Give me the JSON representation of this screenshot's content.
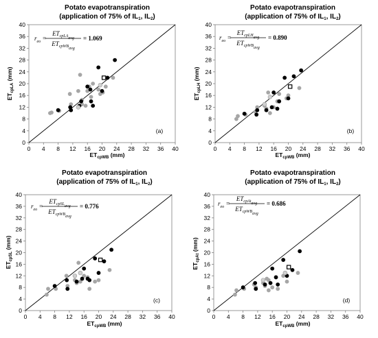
{
  "chart_data": [
    {
      "type": "scatter",
      "panel_label": "(a)",
      "title_line1": "Potato evapotranspiration",
      "title_line2": "(application of 75% of IL",
      "title_sub1": "1",
      "title_mid": ", IL",
      "title_sub2": "2",
      "title_end": ")",
      "xlabel_main": "ET",
      "xlabel_sub": "cpWB",
      "xlabel_unit": " (mm)",
      "ylabel_main": "ET",
      "ylabel_sub": "cpLA",
      "ylabel_unit": " (mm)",
      "xlim": [
        0,
        40
      ],
      "ylim": [
        0,
        40
      ],
      "ticks": [
        "0",
        "4",
        "8",
        "12",
        "16",
        "20",
        "24",
        "28",
        "32",
        "36",
        "40"
      ],
      "equation": {
        "lhs": "r",
        "lhs_sub": "eo",
        "num": "ET",
        "num_sub": "cpLA",
        "num_sub2": "avg",
        "den": "ET",
        "den_sub": "cpWB",
        "den_sub2": "avg",
        "value": "1.069"
      },
      "series": [
        {
          "style": "gray",
          "points": [
            [
              5.8,
              10.0
            ],
            [
              6.2,
              10.2
            ],
            [
              8.3,
              10.8
            ],
            [
              11.2,
              16.5
            ],
            [
              11.5,
              13.0
            ],
            [
              13.5,
              17.5
            ],
            [
              14.0,
              23.0
            ],
            [
              14.5,
              14.5
            ],
            [
              15.5,
              12.5
            ],
            [
              16.5,
              19.0
            ],
            [
              17.0,
              15.5
            ],
            [
              17.5,
              20.0
            ],
            [
              19.0,
              18.0
            ],
            [
              19.5,
              16.5
            ],
            [
              20.2,
              17.0
            ],
            [
              21.0,
              19.0
            ],
            [
              23.0,
              22.0
            ],
            [
              14.5,
              13.0
            ],
            [
              16.0,
              17.5
            ]
          ]
        },
        {
          "style": "black",
          "points": [
            [
              8.0,
              11.0
            ],
            [
              11.3,
              12.0
            ],
            [
              11.5,
              11.0
            ],
            [
              13.8,
              12.5
            ],
            [
              14.3,
              14.0
            ],
            [
              16.0,
              19.0
            ],
            [
              16.8,
              18.0
            ],
            [
              17.0,
              14.0
            ],
            [
              17.5,
              12.5
            ],
            [
              19.0,
              25.5
            ],
            [
              20.0,
              17.5
            ],
            [
              21.5,
              22.0
            ],
            [
              23.5,
              28.0
            ]
          ]
        },
        {
          "style": "lightgray",
          "points": [
            [
              13.5,
              12.0
            ],
            [
              19.5,
              19.5
            ]
          ]
        },
        {
          "style": "open-square",
          "points": [
            [
              20.5,
              22.0
            ]
          ]
        }
      ]
    },
    {
      "type": "scatter",
      "panel_label": "(b)",
      "title_line1": "Potato evapotranspiration",
      "title_line2": "(application of 75% of IL",
      "title_sub1": "1",
      "title_mid": ", IL",
      "title_sub2": "2",
      "title_end": ")",
      "xlabel_main": "ET",
      "xlabel_sub": "cpWB",
      "xlabel_unit": " (mm)",
      "ylabel_main": "ET",
      "ylabel_sub": "cpLH",
      "ylabel_unit": " (mm)",
      "xlim": [
        0,
        40
      ],
      "ylim": [
        0,
        40
      ],
      "ticks": [
        "0",
        "4",
        "8",
        "12",
        "16",
        "20",
        "24",
        "28",
        "32",
        "36",
        "40"
      ],
      "equation": {
        "lhs": "r",
        "lhs_sub": "eo",
        "num": "ET",
        "num_sub": "cpLH",
        "num_sub2": "avg",
        "den": "ET",
        "den_sub": "cpWB",
        "den_sub2": "avg",
        "value": "0.890"
      },
      "series": [
        {
          "style": "gray",
          "points": [
            [
              5.8,
              8.0
            ],
            [
              6.2,
              9.0
            ],
            [
              8.3,
              9.5
            ],
            [
              11.0,
              10.5
            ],
            [
              11.5,
              12.0
            ],
            [
              13.5,
              12.5
            ],
            [
              14.0,
              11.5
            ],
            [
              14.5,
              17.0
            ],
            [
              15.0,
              10.0
            ],
            [
              16.0,
              12.0
            ],
            [
              17.0,
              14.0
            ],
            [
              17.5,
              16.5
            ],
            [
              19.5,
              15.0
            ],
            [
              20.0,
              16.0
            ],
            [
              23.0,
              18.5
            ]
          ]
        },
        {
          "style": "black",
          "points": [
            [
              8.0,
              9.8
            ],
            [
              11.3,
              9.5
            ],
            [
              11.5,
              11.0
            ],
            [
              14.0,
              11.0
            ],
            [
              15.5,
              12.0
            ],
            [
              16.0,
              17.0
            ],
            [
              17.0,
              11.5
            ],
            [
              17.5,
              14.0
            ],
            [
              19.0,
              22.0
            ],
            [
              20.0,
              15.0
            ],
            [
              21.5,
              22.5
            ],
            [
              23.5,
              24.5
            ]
          ]
        },
        {
          "style": "lightgray",
          "points": [
            [
              13.5,
              13.0
            ],
            [
              15.0,
              15.5
            ]
          ]
        },
        {
          "style": "open-square",
          "points": [
            [
              20.5,
              19.0
            ]
          ]
        }
      ]
    },
    {
      "type": "scatter",
      "panel_label": "(c)",
      "title_line1": "Potato evapotranspiration",
      "title_line2": "(application of 75% of IL",
      "title_sub1": "1",
      "title_mid": ", IL",
      "title_sub2": "2",
      "title_end": ")",
      "xlabel_main": "ET",
      "xlabel_sub": "cpWB",
      "xlabel_unit": " (mm)",
      "ylabel_main": "ET",
      "ylabel_sub": "cpSL",
      "ylabel_unit": " (mm)",
      "xlim": [
        0,
        40
      ],
      "ylim": [
        0,
        40
      ],
      "ticks": [
        "0",
        "4",
        "8",
        "12",
        "16",
        "20",
        "24",
        "28",
        "32",
        "36",
        "40"
      ],
      "equation": {
        "lhs": "r",
        "lhs_sub": "eo",
        "num": "ET",
        "num_sub": "cpSL",
        "num_sub2": "avg",
        "den": "ET",
        "den_sub": "cpWB",
        "den_sub2": "avg",
        "value": "0.776"
      },
      "series": [
        {
          "style": "gray",
          "points": [
            [
              5.8,
              5.5
            ],
            [
              6.2,
              7.5
            ],
            [
              8.3,
              7.5
            ],
            [
              11.2,
              12.0
            ],
            [
              11.5,
              8.5
            ],
            [
              13.5,
              10.5
            ],
            [
              14.0,
              9.5
            ],
            [
              14.5,
              16.5
            ],
            [
              15.0,
              10.0
            ],
            [
              16.0,
              12.0
            ],
            [
              17.0,
              11.5
            ],
            [
              17.5,
              7.5
            ],
            [
              19.0,
              10.0
            ],
            [
              20.0,
              10.5
            ],
            [
              23.0,
              14.0
            ]
          ]
        },
        {
          "style": "black",
          "points": [
            [
              8.0,
              8.5
            ],
            [
              11.3,
              10.5
            ],
            [
              11.5,
              7.5
            ],
            [
              14.0,
              10.0
            ],
            [
              15.5,
              11.0
            ],
            [
              16.0,
              14.5
            ],
            [
              17.0,
              11.0
            ],
            [
              17.5,
              10.5
            ],
            [
              19.0,
              18.0
            ],
            [
              20.0,
              13.0
            ],
            [
              21.5,
              17.0
            ],
            [
              23.5,
              21.0
            ]
          ]
        },
        {
          "style": "lightgray",
          "points": [
            [
              13.5,
              12.0
            ],
            [
              15.0,
              13.0
            ]
          ]
        },
        {
          "style": "open-square",
          "points": [
            [
              20.5,
              17.5
            ]
          ]
        }
      ]
    },
    {
      "type": "scatter",
      "panel_label": "(d)",
      "title_line1": "Potato evapotranspiration",
      "title_line2": "(application of 75% of IL",
      "title_sub1": "1",
      "title_mid": ", IL",
      "title_sub2": "2",
      "title_end": ")",
      "xlabel_main": "ET",
      "xlabel_sub": "cpWB",
      "xlabel_unit": " (mm)",
      "ylabel_main": "ET",
      "ylabel_sub": "cpAt",
      "ylabel_unit": " (mm)",
      "xlim": [
        0,
        40
      ],
      "ylim": [
        0,
        40
      ],
      "ticks": [
        "0",
        "4",
        "8",
        "12",
        "16",
        "20",
        "24",
        "28",
        "32",
        "36",
        "40"
      ],
      "equation": {
        "lhs": "r",
        "lhs_sub": "eo",
        "num": "ET",
        "num_sub": "cpAt",
        "num_sub2": "avg",
        "den": "ET",
        "den_sub": "cpWB",
        "den_sub2": "avg",
        "value": "0.686"
      },
      "series": [
        {
          "style": "gray",
          "points": [
            [
              5.8,
              5.5
            ],
            [
              6.2,
              7.0
            ],
            [
              8.3,
              7.5
            ],
            [
              11.0,
              9.0
            ],
            [
              11.5,
              8.0
            ],
            [
              13.5,
              9.5
            ],
            [
              14.0,
              8.5
            ],
            [
              14.5,
              11.0
            ],
            [
              15.0,
              7.0
            ],
            [
              16.0,
              8.0
            ],
            [
              17.0,
              11.5
            ],
            [
              17.5,
              7.5
            ],
            [
              19.0,
              12.0
            ],
            [
              20.0,
              10.0
            ],
            [
              23.0,
              13.0
            ],
            [
              15.0,
              10.5
            ]
          ]
        },
        {
          "style": "black",
          "points": [
            [
              8.0,
              8.0
            ],
            [
              11.3,
              9.5
            ],
            [
              11.5,
              7.5
            ],
            [
              14.0,
              9.0
            ],
            [
              15.5,
              9.5
            ],
            [
              16.0,
              14.5
            ],
            [
              17.0,
              11.5
            ],
            [
              17.5,
              9.0
            ],
            [
              19.0,
              17.5
            ],
            [
              20.0,
              12.0
            ],
            [
              21.5,
              14.0
            ],
            [
              23.5,
              20.5
            ]
          ]
        },
        {
          "style": "lightgray",
          "points": [
            [
              13.5,
              10.5
            ],
            [
              19.5,
              13.0
            ]
          ]
        },
        {
          "style": "open-square",
          "points": [
            [
              20.5,
              15.0
            ]
          ]
        }
      ]
    }
  ]
}
